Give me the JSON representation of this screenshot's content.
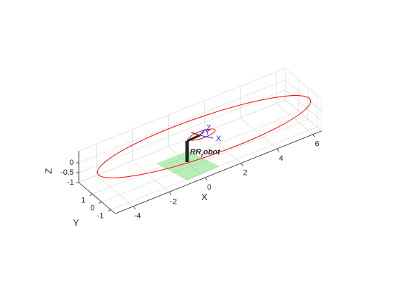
{
  "chart_data": {
    "type": "plot3d",
    "xlabel": "X",
    "ylabel": "Y",
    "zlabel": "Z",
    "xlim": [
      -5,
      6.5
    ],
    "ylim": [
      -1.5,
      2.5
    ],
    "zlim": [
      -1,
      0.6
    ],
    "xticks": [
      -4,
      -2,
      0,
      2,
      4,
      6
    ],
    "yticks": [
      -1,
      0,
      1
    ],
    "zticks": [
      -1,
      -0.5,
      0
    ],
    "grid": true,
    "robot_label": {
      "main": "RR",
      "sub": "r",
      "rest": "obot"
    },
    "frame_labels": [
      "X",
      "Y",
      "Z"
    ],
    "trajectory_color": "#ff0000",
    "floor_color": "#33cc33"
  }
}
